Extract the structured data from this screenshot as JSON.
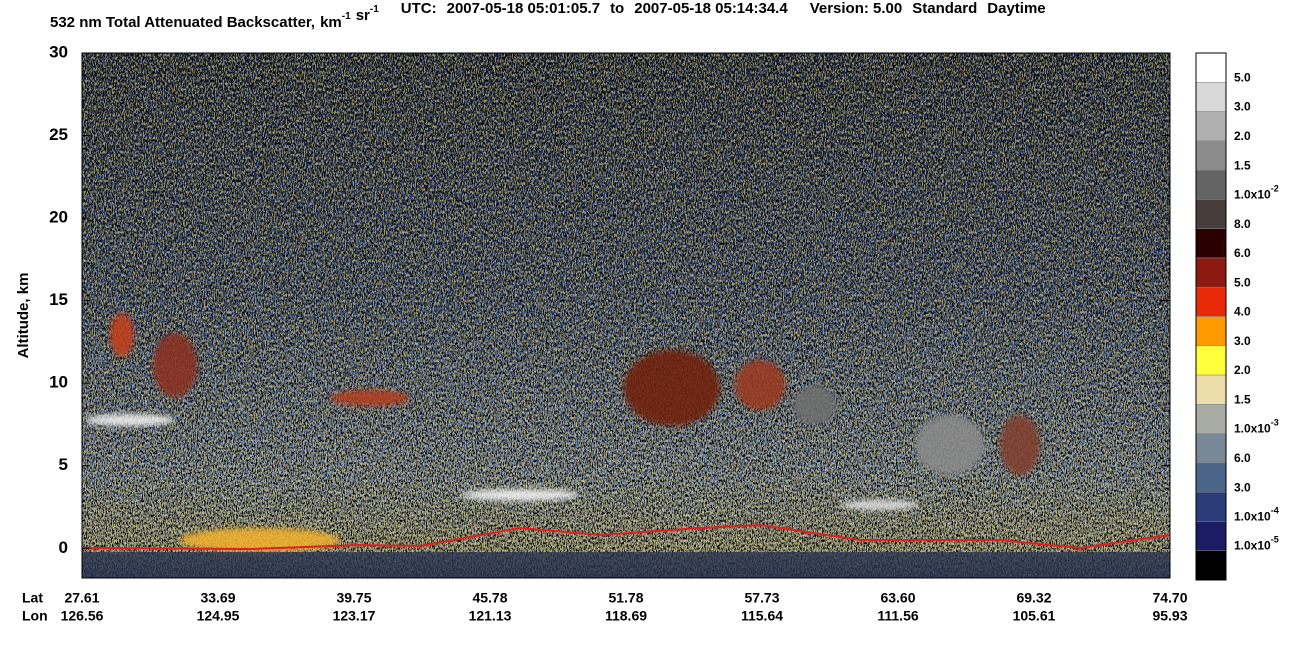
{
  "chart_data": {
    "type": "heatmap",
    "title": "532 nm Total Attenuated Backscatter,",
    "units": [
      {
        "base": "km",
        "exp": "-1"
      },
      {
        "base": "sr",
        "exp": "-1"
      }
    ],
    "time_range": {
      "label": "UTC:",
      "start": "2007-05-18 05:01:05.7",
      "sep": "to",
      "end": "2007-05-18 05:14:34.4"
    },
    "version": "Version: 5.00",
    "mode": "Standard",
    "lighting": "Daytime",
    "y_label": "Altitude, km",
    "ylim": [
      -1.8,
      30
    ],
    "yticks": [
      0,
      5,
      10,
      15,
      20,
      25,
      30
    ],
    "x_rows": [
      {
        "name": "Lat",
        "labels": [
          "27.61",
          "33.69",
          "39.75",
          "45.78",
          "51.78",
          "57.73",
          "63.60",
          "69.32",
          "74.70"
        ]
      },
      {
        "name": "Lon",
        "labels": [
          "126.56",
          "124.95",
          "123.17",
          "121.13",
          "118.69",
          "115.64",
          "111.56",
          "105.61",
          "95.93"
        ]
      }
    ],
    "colorbar": {
      "colors": [
        "#ffffff",
        "#d8d8d8",
        "#b0b0b0",
        "#8c8c8c",
        "#646464",
        "#463c3a",
        "#2a0000",
        "#8c1a10",
        "#e82a0a",
        "#ff9a00",
        "#ffff3c",
        "#ecdcaa",
        "#a8aca4",
        "#788896",
        "#4c6488",
        "#2c3c78",
        "#1c1c64",
        "#000000"
      ],
      "labels": [
        "5.0",
        "3.0",
        "2.0",
        "1.5",
        {
          "mantissa": "1.0x10",
          "exp": "-2"
        },
        "8.0",
        "6.0",
        "5.0",
        "4.0",
        "3.0",
        "2.0",
        "1.5",
        {
          "mantissa": "1.0x10",
          "exp": "-3"
        },
        "6.0",
        "3.0",
        {
          "mantissa": "1.0x10",
          "exp": "-4"
        },
        {
          "mantissa": "1.0x10",
          "exp": "-5"
        }
      ]
    }
  }
}
